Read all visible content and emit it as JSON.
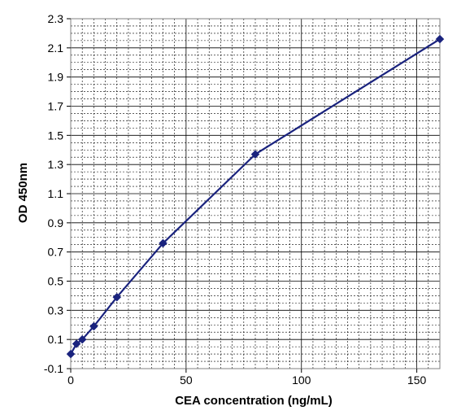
{
  "chart_data": {
    "type": "line",
    "title": "",
    "xlabel": "CEA concentration (ng/mL)",
    "ylabel": "OD 450nm",
    "xlim": [
      0,
      160
    ],
    "ylim": [
      -0.1,
      2.3
    ],
    "x_ticks": [
      0,
      50,
      100,
      150
    ],
    "y_ticks": [
      -0.1,
      0.1,
      0.3,
      0.5,
      0.7,
      0.9,
      1.1,
      1.3,
      1.5,
      1.7,
      1.9,
      2.1,
      2.3
    ],
    "x_tick_labels": [
      "0",
      "50",
      "100",
      "150"
    ],
    "y_tick_labels": [
      "-0.1",
      "0.1",
      "0.3",
      "0.5",
      "0.7",
      "0.9",
      "1.1",
      "1.3",
      "1.5",
      "1.7",
      "1.9",
      "2.1",
      "2.3"
    ],
    "grid": true,
    "legend": false,
    "series": [
      {
        "marker": "diamond",
        "color": "#1a237e",
        "x": [
          0,
          2.5,
          5,
          10,
          20,
          40,
          80,
          160
        ],
        "y": [
          0.0,
          0.07,
          0.1,
          0.19,
          0.39,
          0.76,
          1.37,
          2.16
        ]
      }
    ]
  }
}
